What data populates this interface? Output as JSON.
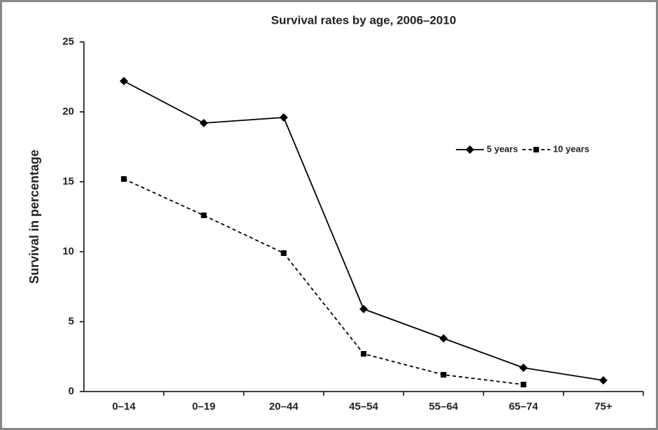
{
  "chart_data": {
    "type": "line",
    "title": "Survival rates by age, 2006–2010",
    "y_label": "Survival in percentage",
    "categories": [
      "0–14",
      "0–19",
      "20–44",
      "45–54",
      "55–64",
      "65–74",
      "75+"
    ],
    "series": [
      {
        "name": "5 years",
        "color": "#000000",
        "line_style": "solid",
        "marker": "diamond",
        "values": [
          22.2,
          19.2,
          19.6,
          5.9,
          3.8,
          1.7,
          0.8
        ]
      },
      {
        "name": "10 years",
        "color": "#000000",
        "line_style": "dashed",
        "marker": "square",
        "values": [
          15.2,
          12.6,
          9.9,
          2.7,
          1.2,
          0.5,
          null
        ]
      }
    ],
    "ylim": [
      0,
      25
    ],
    "yticks": [
      0,
      5,
      10,
      15,
      20,
      25
    ],
    "grid": false,
    "legend": "upper right"
  }
}
